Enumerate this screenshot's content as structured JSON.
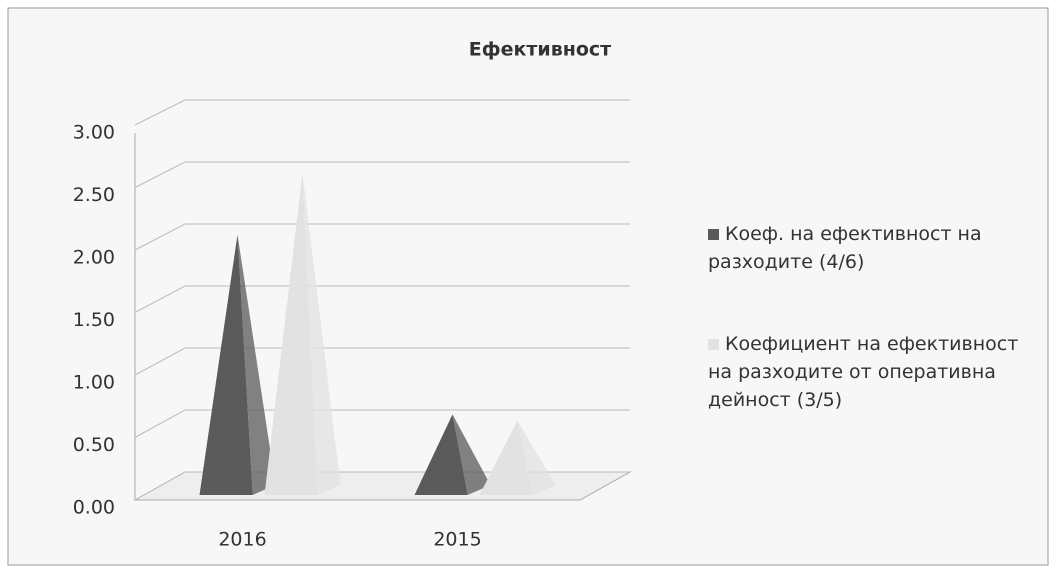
{
  "chart_data": {
    "type": "pyramid3d",
    "title": "Ефективност",
    "categories": [
      "2016",
      "2015"
    ],
    "series": [
      {
        "name": "Коеф. на ефективност на разходите (4/6)",
        "color": "#5a5a5a",
        "values": [
          2.1,
          0.65
        ]
      },
      {
        "name": "Коефициент на ефективност на разходите от оперативна дейност (3/5)",
        "color": "#e2e2e2",
        "values": [
          2.6,
          0.6
        ]
      }
    ],
    "ylim": [
      0,
      3
    ],
    "yticks": [
      {
        "value": 0,
        "label": "0.00"
      },
      {
        "value": 0.5,
        "label": "0.50"
      },
      {
        "value": 1,
        "label": "1.00"
      },
      {
        "value": 1.5,
        "label": "1.50"
      },
      {
        "value": 2,
        "label": "2.00"
      },
      {
        "value": 2.5,
        "label": "2.50"
      },
      {
        "value": 3,
        "label": "3.00"
      }
    ],
    "grid": true
  }
}
